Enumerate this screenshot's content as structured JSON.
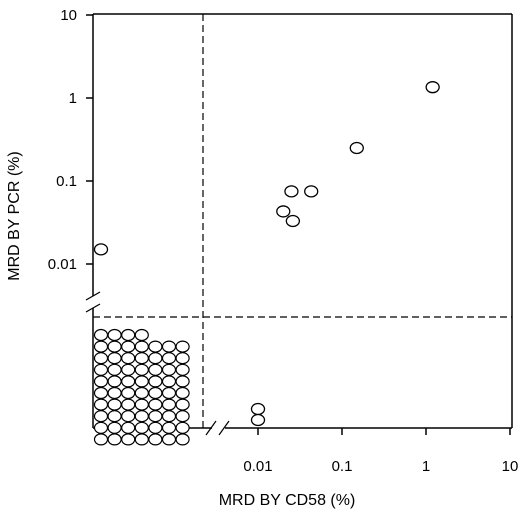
{
  "chart_data": {
    "type": "scatter",
    "title": "",
    "xlabel": "MRD BY CD58 (%)",
    "ylabel": "MRD BY PCR (%)",
    "x_scale": "log",
    "y_scale": "log",
    "xlim": [
      0.001,
      10
    ],
    "ylim": [
      0.001,
      10
    ],
    "x_ticks": [
      "0.01",
      "0.1",
      "1",
      "10"
    ],
    "y_ticks": [
      "10",
      "1",
      "0.1",
      "0.01"
    ],
    "axis_breaks": true,
    "threshold_lines": "dashed",
    "series": [
      {
        "points": [
          {
            "x": 1.2,
            "y": 1.35
          },
          {
            "x": 0.15,
            "y": 0.25
          },
          {
            "x": 0.025,
            "y": 0.075
          },
          {
            "x": 0.043,
            "y": 0.075
          },
          {
            "x": 0.02,
            "y": 0.043
          },
          {
            "x": 0.026,
            "y": 0.033
          },
          {
            "x": 0.01,
            "y": "negative"
          },
          {
            "x": 0.01,
            "y": "negative"
          },
          {
            "x": "negative",
            "y": 0.015
          }
        ]
      }
    ],
    "double_negative_count": 67,
    "double_negative_rows": [
      7,
      7,
      7,
      7,
      7,
      7,
      7,
      7,
      7,
      4
    ]
  }
}
